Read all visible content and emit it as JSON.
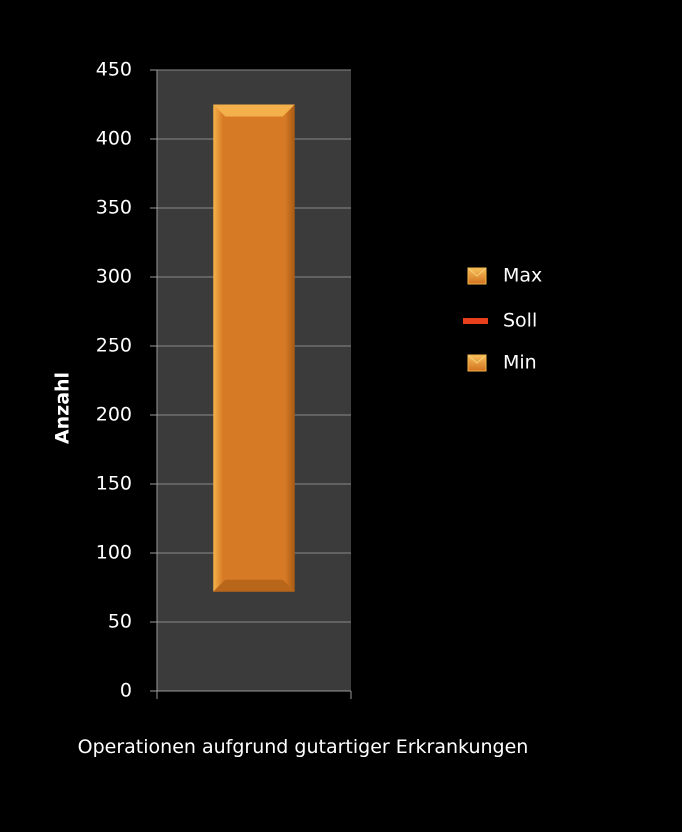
{
  "chart_data": {
    "type": "bar",
    "subtype": "floating-range",
    "categories": [
      "Operationen aufgrund gutartiger Erkrankungen"
    ],
    "series": [
      {
        "name": "Max",
        "values": [
          425
        ]
      },
      {
        "name": "Soll",
        "values": [
          null
        ]
      },
      {
        "name": "Min",
        "values": [
          72
        ]
      }
    ],
    "title": "",
    "xlabel": "",
    "ylabel": "Anzahl",
    "ylim": [
      0,
      450
    ],
    "yticks": [
      0,
      50,
      100,
      150,
      200,
      250,
      300,
      350,
      400,
      450
    ],
    "grid": true,
    "legend": "right",
    "colors": {
      "background": "#000000",
      "plot_area": "#3b3b3b",
      "gridline": "#8a8a8a",
      "bar_fill": "#d9782a",
      "bar_edge": "#f0a640",
      "soll": "#e8401c"
    }
  }
}
